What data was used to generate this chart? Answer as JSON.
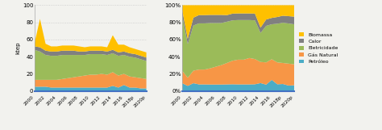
{
  "years": [
    2000,
    2001,
    2002,
    2003,
    2004,
    2005,
    2006,
    2007,
    2008,
    2009,
    2010,
    2011,
    2012,
    2013,
    2014,
    2015,
    2016,
    2017,
    2018,
    2019,
    2020
  ],
  "petroleo": [
    5,
    5,
    5,
    4,
    4,
    4,
    4,
    4,
    4,
    4,
    4,
    4,
    4,
    4,
    6,
    4,
    7,
    4,
    4,
    3,
    3
  ],
  "gas_natural": [
    8,
    8,
    8,
    9,
    9,
    10,
    11,
    12,
    13,
    14,
    15,
    15,
    16,
    15,
    16,
    14,
    13,
    13,
    12,
    12,
    11
  ],
  "eletricidade": [
    35,
    33,
    29,
    28,
    28,
    28,
    27,
    26,
    25,
    24,
    24,
    24,
    23,
    23,
    22,
    23,
    22,
    23,
    23,
    22,
    21
  ],
  "calor": [
    4,
    5,
    5,
    5,
    5,
    5,
    5,
    5,
    4,
    4,
    4,
    4,
    4,
    4,
    4,
    4,
    4,
    4,
    4,
    4,
    4
  ],
  "biomassa": [
    3,
    33,
    8,
    6,
    6,
    6,
    6,
    6,
    6,
    5,
    5,
    5,
    5,
    5,
    17,
    9,
    8,
    7,
    6,
    6,
    6
  ],
  "colors": {
    "petroleo": "#4bacc6",
    "gas_natural": "#f79646",
    "eletricidade": "#9bbb59",
    "calor": "#808080",
    "biomassa": "#ffc000"
  },
  "ylabel_left": "ktep",
  "yticks_left": [
    0,
    20,
    40,
    60,
    80,
    100
  ],
  "yticks_right": [
    "0%",
    "20%",
    "40%",
    "60%",
    "80%",
    "100%"
  ],
  "xtick_labels": [
    "2000",
    "2002",
    "2004",
    "2006",
    "2008",
    "2010",
    "2012",
    "2014",
    "2016",
    "2018p",
    "2020p"
  ],
  "legend_labels": [
    "Biomassa",
    "Calor",
    "Eletricidade",
    "Gás Natural",
    "Petróleo"
  ],
  "background": "#f2f2ee"
}
